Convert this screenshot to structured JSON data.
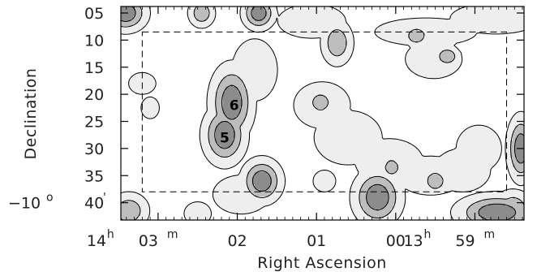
{
  "chart_data": {
    "type": "contour",
    "xlabel": "Right Ascension",
    "ylabel": "Declination",
    "x_ticks": [
      {
        "main": "14",
        "unit": "h",
        "sub": "03",
        "subunit": "m",
        "ra_min": 843
      },
      {
        "main": "02",
        "ra_min": 842
      },
      {
        "main": "01",
        "ra_min": 841
      },
      {
        "main": "00",
        "ra_min": 840
      },
      {
        "main": "13",
        "unit": "h",
        "sub": "59",
        "subunit": "m",
        "ra_min": 839
      }
    ],
    "x_range_ra_min": [
      843.47,
      838.38
    ],
    "y_ticks": [
      {
        "label": "05",
        "dec_arcmin": -5
      },
      {
        "label": "10",
        "dec_arcmin": -10
      },
      {
        "label": "15",
        "dec_arcmin": -15
      },
      {
        "label": "20",
        "dec_arcmin": -20
      },
      {
        "label": "25",
        "dec_arcmin": -25
      },
      {
        "label": "30",
        "dec_arcmin": -30
      },
      {
        "label": "35",
        "dec_arcmin": -35
      },
      {
        "label": "40",
        "prefix": "−10",
        "prefix_unit": "o",
        "suffix": "'",
        "dec_arcmin": -40
      }
    ],
    "y_range_dec_arcmin": [
      -3.8,
      -43.2
    ],
    "dashed_box": {
      "ra_min": [
        843.2,
        838.6
      ],
      "dec_arcmin": [
        -8.5,
        -38.0
      ]
    },
    "contour_levels": 3,
    "level_fills": [
      "#eeeeee",
      "#bdbdbd",
      "#8c8c8c"
    ],
    "labeled_sources": [
      {
        "label": "6",
        "ra_min": 842.04,
        "dec_arcmin": -22.0
      },
      {
        "label": "5",
        "ra_min": 842.16,
        "dec_arcmin": -28.0
      }
    ],
    "clumps": [
      {
        "ra_min": 843.41,
        "dec_arcmin": -5.0,
        "sa": 0.16,
        "sd": 2.0,
        "levels": 3
      },
      {
        "ra_min": 841.73,
        "dec_arcmin": -5.0,
        "sa": 0.12,
        "sd": 1.8,
        "levels": 3
      },
      {
        "ra_min": 842.45,
        "dec_arcmin": -5.0,
        "sa": 0.1,
        "sd": 1.6,
        "levels": 2
      },
      {
        "ra_min": 841.06,
        "dec_arcmin": -6.5,
        "sa": 0.3,
        "sd": 2.2,
        "levels": 1
      },
      {
        "ra_min": 840.74,
        "dec_arcmin": -10.5,
        "sa": 0.12,
        "sd": 2.5,
        "levels": 2
      },
      {
        "ra_min": 839.62,
        "dec_arcmin": -8.5,
        "sa": 0.45,
        "sd": 1.8,
        "levels": 1
      },
      {
        "ra_min": 839.74,
        "dec_arcmin": -9.2,
        "sa": 0.1,
        "sd": 1.2,
        "levels": 2
      },
      {
        "ra_min": 839.52,
        "dec_arcmin": -13.5,
        "sa": 0.25,
        "sd": 2.5,
        "levels": 1
      },
      {
        "ra_min": 839.35,
        "dec_arcmin": -13.0,
        "sa": 0.1,
        "sd": 1.2,
        "levels": 2
      },
      {
        "ra_min": 838.74,
        "dec_arcmin": -6.0,
        "sa": 0.4,
        "sd": 2.0,
        "levels": 1
      },
      {
        "ra_min": 843.2,
        "dec_arcmin": -18.0,
        "sa": 0.12,
        "sd": 1.4,
        "levels": 1
      },
      {
        "ra_min": 843.1,
        "dec_arcmin": -22.5,
        "sa": 0.08,
        "sd": 1.4,
        "levels": 1
      },
      {
        "ra_min": 842.07,
        "dec_arcmin": -21.5,
        "sa": 0.16,
        "sd": 4.0,
        "levels": 3
      },
      {
        "ra_min": 842.16,
        "dec_arcmin": -27.5,
        "sa": 0.16,
        "sd": 3.2,
        "levels": 3
      },
      {
        "ra_min": 841.78,
        "dec_arcmin": -15.5,
        "sa": 0.2,
        "sd": 4.0,
        "levels": 1
      },
      {
        "ra_min": 841.86,
        "dec_arcmin": -13.5,
        "sa": 0.08,
        "sd": 1.5,
        "levels": 1
      },
      {
        "ra_min": 840.93,
        "dec_arcmin": -22.0,
        "sa": 0.25,
        "sd": 3.0,
        "levels": 1
      },
      {
        "ra_min": 840.95,
        "dec_arcmin": -21.5,
        "sa": 0.1,
        "sd": 1.4,
        "levels": 2
      },
      {
        "ra_min": 840.6,
        "dec_arcmin": -28.0,
        "sa": 0.3,
        "sd": 3.5,
        "levels": 1
      },
      {
        "ra_min": 840.08,
        "dec_arcmin": -32.5,
        "sa": 0.3,
        "sd": 3.0,
        "levels": 1
      },
      {
        "ra_min": 840.05,
        "dec_arcmin": -33.5,
        "sa": 0.08,
        "sd": 1.2,
        "levels": 2
      },
      {
        "ra_min": 839.56,
        "dec_arcmin": -35.0,
        "sa": 0.3,
        "sd": 2.5,
        "levels": 1
      },
      {
        "ra_min": 839.5,
        "dec_arcmin": -36.0,
        "sa": 0.1,
        "sd": 1.4,
        "levels": 2
      },
      {
        "ra_min": 839.16,
        "dec_arcmin": -34.0,
        "sa": 0.25,
        "sd": 2.8,
        "levels": 1
      },
      {
        "ra_min": 838.95,
        "dec_arcmin": -30.0,
        "sa": 0.2,
        "sd": 3.0,
        "levels": 1
      },
      {
        "ra_min": 838.42,
        "dec_arcmin": -30.0,
        "sa": 0.1,
        "sd": 3.5,
        "levels": 3
      },
      {
        "ra_min": 841.69,
        "dec_arcmin": -36.0,
        "sa": 0.15,
        "sd": 2.4,
        "levels": 3
      },
      {
        "ra_min": 841.95,
        "dec_arcmin": -38.5,
        "sa": 0.25,
        "sd": 2.5,
        "levels": 1
      },
      {
        "ra_min": 840.9,
        "dec_arcmin": -36.0,
        "sa": 0.1,
        "sd": 1.4,
        "levels": 1
      },
      {
        "ra_min": 840.23,
        "dec_arcmin": -39.0,
        "sa": 0.18,
        "sd": 3.0,
        "levels": 3
      },
      {
        "ra_min": 843.37,
        "dec_arcmin": -41.5,
        "sa": 0.15,
        "sd": 2.0,
        "levels": 2
      },
      {
        "ra_min": 838.72,
        "dec_arcmin": -41.8,
        "sa": 0.3,
        "sd": 2.0,
        "levels": 3
      },
      {
        "ra_min": 838.52,
        "dec_arcmin": -41.0,
        "sa": 0.15,
        "sd": 2.0,
        "levels": 2
      },
      {
        "ra_min": 842.5,
        "dec_arcmin": -42.0,
        "sa": 0.12,
        "sd": 1.5,
        "levels": 1
      }
    ]
  }
}
